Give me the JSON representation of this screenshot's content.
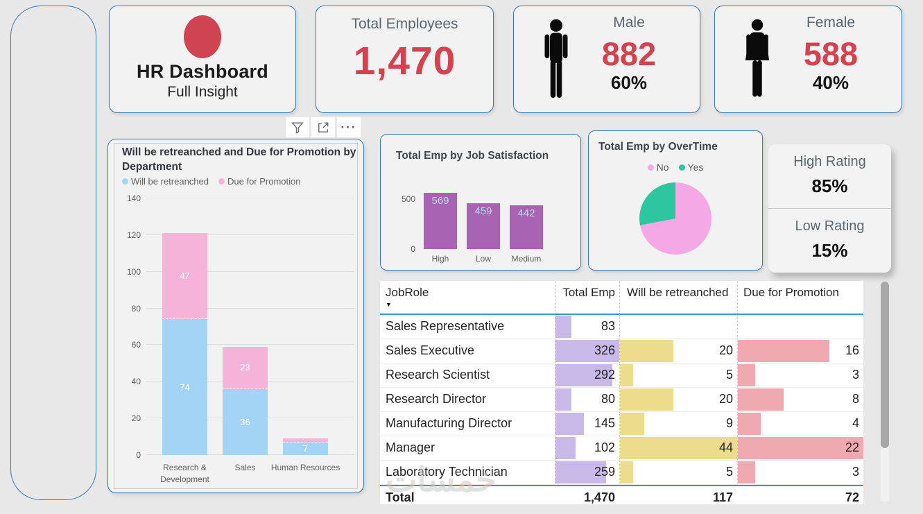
{
  "header_card": {
    "title": "HR Dashboard",
    "subtitle": "Full Insight"
  },
  "kpi_total": {
    "label": "Total Employees",
    "value": "1,470"
  },
  "kpi_male": {
    "label": "Male",
    "value": "882",
    "pct": "60%"
  },
  "kpi_female": {
    "label": "Female",
    "value": "588",
    "pct": "40%"
  },
  "toolbar": {
    "more_glyph": "···"
  },
  "ratings": [
    {
      "label": "High Rating",
      "value": "85%"
    },
    {
      "label": "Low Rating",
      "value": "15%"
    }
  ],
  "colors": {
    "accent_red": "#d6414f",
    "card_border": "#3379b7",
    "header_line_blue": "#2e96d9",
    "retrenched_blue": "#a3d3f5",
    "promotion_pink": "#f5b3d9",
    "satisfaction_purple": "#a864b2",
    "pie_no_pink": "#f4a8e6",
    "pie_yes_green": "#2ec5a1",
    "tablebar_purple": "#c9b9e8",
    "tablebar_yellow": "#eedc8e",
    "tablebar_red": "#f0a9b1"
  },
  "icons": {
    "filter": "filter-funnel",
    "focus": "focus-mode-expand",
    "more": "more-options-ellipsis",
    "male": "male-person",
    "female": "female-person",
    "sort": "sort-descending-arrow",
    "logo": "red-ellipse-logo"
  },
  "chart_data": [
    {
      "id": "dept",
      "type": "bar",
      "stacked": true,
      "title": "Will be retreanched and Due for Promotion by Department",
      "categories": [
        "Research & Development",
        "Sales",
        "Human Resources"
      ],
      "series": [
        {
          "name": "Will be retreanched",
          "color": "#a3d3f5",
          "values": [
            74,
            36,
            7
          ]
        },
        {
          "name": "Due for Promotion",
          "color": "#f5b3d9",
          "values": [
            47,
            23,
            2
          ]
        }
      ],
      "ylim": [
        0,
        140
      ],
      "yticks": [
        0,
        20,
        40,
        60,
        80,
        100,
        120,
        140
      ],
      "grid": true,
      "legend_position": "top",
      "label_min": 5
    },
    {
      "id": "satisfaction",
      "type": "bar",
      "title": "Total Emp by Job Satisfaction",
      "categories": [
        "High",
        "Low",
        "Medium"
      ],
      "values": [
        569,
        459,
        442
      ],
      "color": "#a864b2",
      "ylim": [
        0,
        622
      ],
      "yticks": [
        0,
        500
      ],
      "grid": false
    },
    {
      "id": "overtime",
      "type": "pie",
      "title": "Total Emp by OverTime",
      "slices": [
        {
          "label": "No",
          "color": "#f4a8e6",
          "pct": 72
        },
        {
          "label": "Yes",
          "color": "#2ec5a1",
          "pct": 28
        }
      ],
      "legend_position": "top"
    }
  ],
  "table": {
    "columns": [
      "JobRole",
      "Total Emp",
      "Will be retreanched",
      "Due for Promotion"
    ],
    "sort_glyph": "▼",
    "max": {
      "total": 326,
      "ret": 44,
      "promo": 22
    },
    "bar_colors": {
      "total": "#c9b9e8",
      "ret": "#eedc8e",
      "promo": "#f0a9b1"
    },
    "rows": [
      {
        "role": "Sales Representative",
        "total": "83",
        "total_v": 83,
        "ret": "",
        "ret_v": null,
        "promo": "",
        "promo_v": null
      },
      {
        "role": "Sales Executive",
        "total": "326",
        "total_v": 326,
        "ret": "20",
        "ret_v": 20,
        "promo": "16",
        "promo_v": 16
      },
      {
        "role": "Research Scientist",
        "total": "292",
        "total_v": 292,
        "ret": "5",
        "ret_v": 5,
        "promo": "3",
        "promo_v": 3
      },
      {
        "role": "Research Director",
        "total": "80",
        "total_v": 80,
        "ret": "20",
        "ret_v": 20,
        "promo": "8",
        "promo_v": 8
      },
      {
        "role": "Manufacturing Director",
        "total": "145",
        "total_v": 145,
        "ret": "9",
        "ret_v": 9,
        "promo": "4",
        "promo_v": 4
      },
      {
        "role": "Manager",
        "total": "102",
        "total_v": 102,
        "ret": "44",
        "ret_v": 44,
        "promo": "22",
        "promo_v": 22
      },
      {
        "role": "Laboratory Technician",
        "total": "259",
        "total_v": 259,
        "ret": "5",
        "ret_v": 5,
        "promo": "3",
        "promo_v": 3
      }
    ],
    "total_row": {
      "label": "Total",
      "total": "1,470",
      "ret": "117",
      "promo": "72"
    }
  },
  "watermark": "خمسات"
}
